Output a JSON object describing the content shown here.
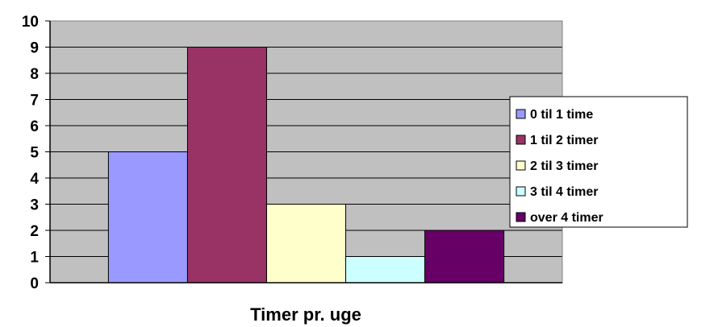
{
  "chart_data": {
    "type": "bar",
    "categories": [
      "0 til 1 time",
      "1 til 2 timer",
      "2 til 3 timer",
      "3 til 4 timer",
      "over 4 timer"
    ],
    "values": [
      5,
      9,
      3,
      1,
      2
    ],
    "colors": [
      "#9999ff",
      "#993366",
      "#ffffcc",
      "#ccffff",
      "#660066"
    ],
    "title": "",
    "xlabel": "Timer pr. uge",
    "ylabel": "",
    "ylim": [
      0,
      10
    ],
    "yticks": [
      "0",
      "1",
      "2",
      "3",
      "4",
      "5",
      "6",
      "7",
      "8",
      "9",
      "10"
    ],
    "grid": true,
    "plot_background": "#c0c0c0",
    "legend_placement": "right",
    "legend": [
      "0 til 1 time",
      "1 til 2 timer",
      "2 til 3 timer",
      "3 til 4 timer",
      "over 4 timer"
    ]
  }
}
